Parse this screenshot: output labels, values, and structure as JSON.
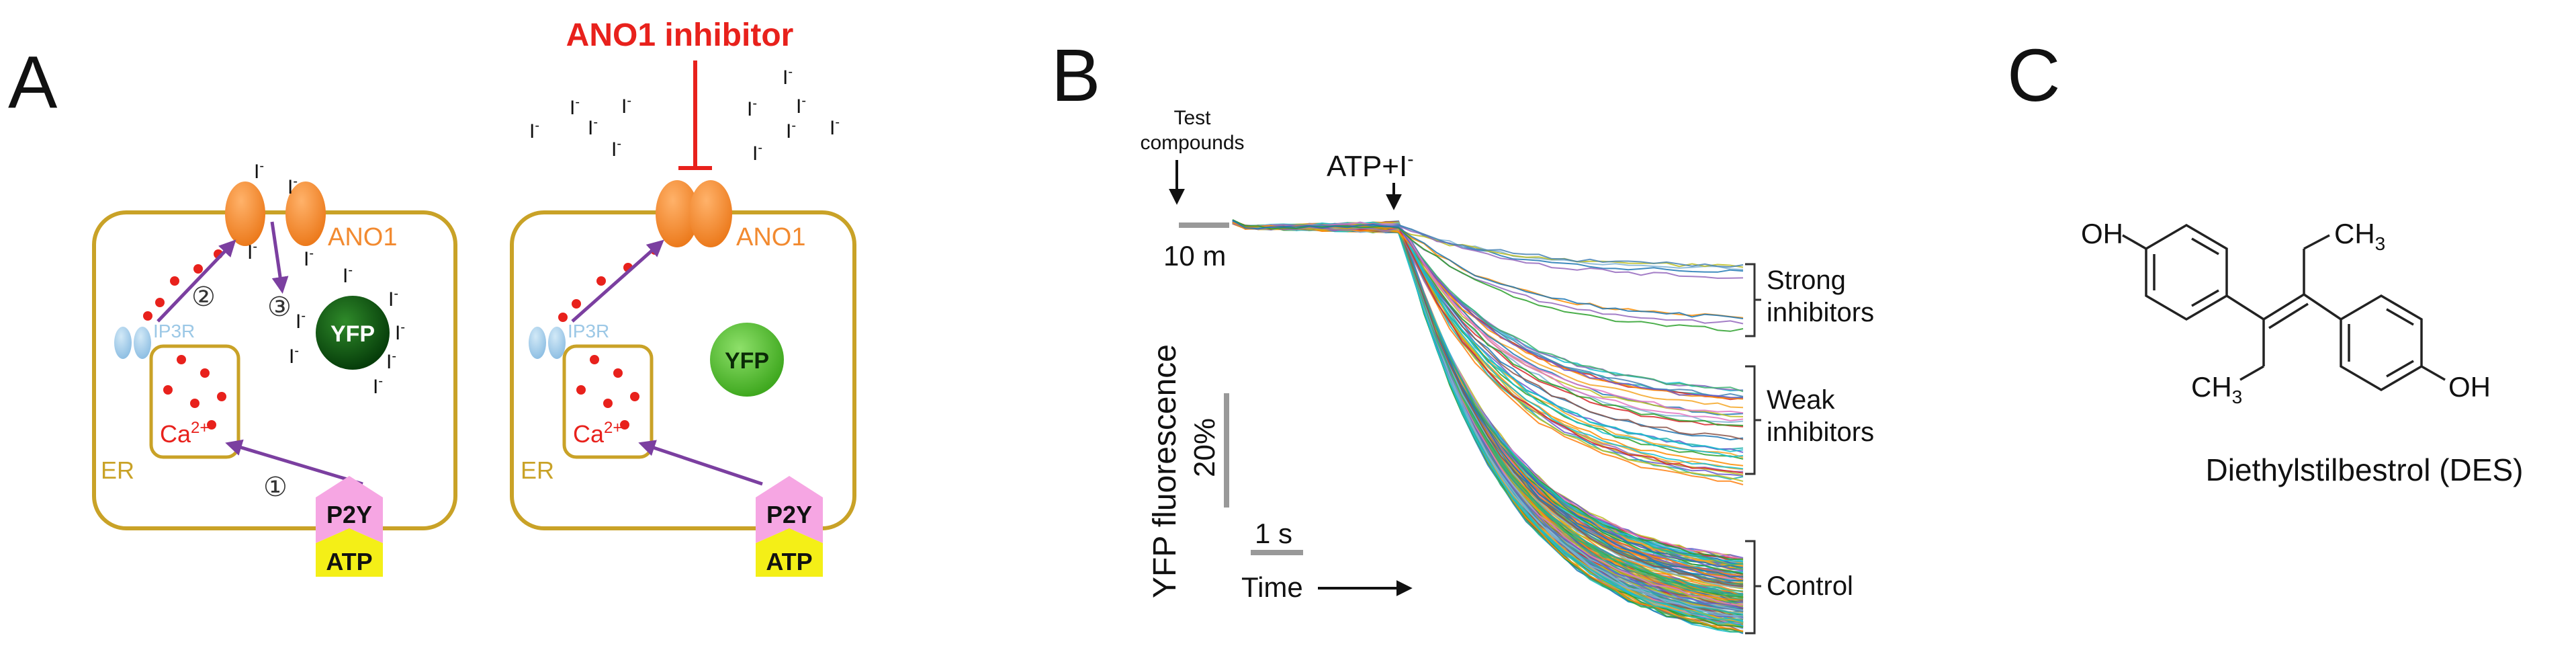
{
  "panel_a": {
    "letter": "A",
    "inhibitor_label": "ANO1 inhibitor",
    "ion": "I",
    "ion_charge": "-",
    "channel_label": "ANO1",
    "receptor_label": "IP3R",
    "er_label": "ER",
    "calcium_label": "Ca",
    "calcium_charge": "2+",
    "yfp_label": "YFP",
    "p2y_label": "P2Y",
    "atp_label": "ATP",
    "step_1": "①",
    "step_2": "②",
    "step_3": "③"
  },
  "panel_b": {
    "letter": "B",
    "test_compounds_line1": "Test",
    "test_compounds_line2": "compounds",
    "atp_i_label": "ATP+I",
    "atp_i_charge": "-",
    "scale_time_long": "10 m",
    "y_axis_label": "YFP fluorescence",
    "scale_percent": "20%",
    "scale_time_short": "1 s",
    "time_label": "Time",
    "group_strong_line1": "Strong",
    "group_strong_line2": "inhibitors",
    "group_weak_line1": "Weak",
    "group_weak_line2": "inhibitors",
    "group_control": "Control"
  },
  "panel_c": {
    "letter": "C",
    "oh_left": "OH",
    "ch3_top": "CH",
    "ch3_bottom": "CH",
    "subscript_3": "3",
    "oh_right": "OH",
    "compound_name": "Diethylstilbestrol (DES)"
  },
  "colors": {
    "cell_border": "#c9a227",
    "channel": "#f28a30",
    "inhibitor_red": "#e8211c",
    "arrow_purple": "#7b3fa0",
    "receptor_blue": "#9cc8e6",
    "p2y_pink": "#f6a6e3",
    "atp_yellow": "#f4ef17",
    "yfp_dark": "#0d5a12",
    "yfp_light": "#5cc33c"
  }
}
